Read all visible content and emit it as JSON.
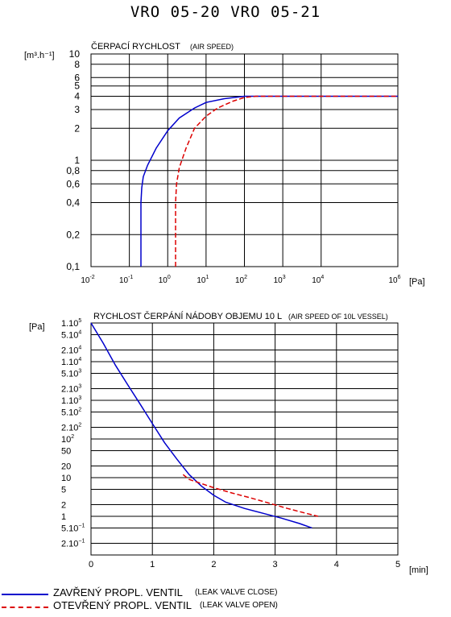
{
  "page": {
    "title": "VRO 05-20   VRO 05-21"
  },
  "legend": [
    {
      "label": "ZAVŘENÝ PROPL. VENTIL",
      "sublabel": "(LEAK VALVE CLOSE)",
      "color": "#0000cc",
      "dash": "solid"
    },
    {
      "label": "OTEVŘENÝ PROPL. VENTIL",
      "sublabel": "(LEAK VALVE OPEN)",
      "color": "#dd0000",
      "dash": "dashed"
    }
  ],
  "chart_data": [
    {
      "type": "line",
      "title": "ČERPACÍ RYCHLOST",
      "subtitle": "(AIR SPEED)",
      "ylabel": "[m³.h⁻¹]",
      "xlabel": "[Pa]",
      "xscale": "log",
      "yscale": "log",
      "xlim": [
        0.01,
        1000000
      ],
      "ylim": [
        0.1,
        10
      ],
      "grid": true,
      "x_ticks": [
        {
          "v": 0.01,
          "base": "10",
          "exp": "-2"
        },
        {
          "v": 0.1,
          "base": "10",
          "exp": "-1"
        },
        {
          "v": 1,
          "base": "10",
          "exp": "0"
        },
        {
          "v": 10,
          "base": "10",
          "exp": "1"
        },
        {
          "v": 100,
          "base": "10",
          "exp": "2"
        },
        {
          "v": 1000,
          "base": "10",
          "exp": "3"
        },
        {
          "v": 10000,
          "base": "10",
          "exp": "4"
        },
        {
          "v": 1000000,
          "base": "10",
          "exp": "6"
        }
      ],
      "y_ticks": [
        {
          "v": 10,
          "label": "10"
        },
        {
          "v": 8,
          "label": "8"
        },
        {
          "v": 6,
          "label": "6"
        },
        {
          "v": 5,
          "label": "5"
        },
        {
          "v": 4,
          "label": "4"
        },
        {
          "v": 3,
          "label": "3"
        },
        {
          "v": 2,
          "label": "2"
        },
        {
          "v": 1,
          "label": "1"
        },
        {
          "v": 0.8,
          "label": "0,8"
        },
        {
          "v": 0.6,
          "label": "0,6"
        },
        {
          "v": 0.4,
          "label": "0,4"
        },
        {
          "v": 0.2,
          "label": "0,2"
        },
        {
          "v": 0.1,
          "label": "0,1"
        }
      ],
      "series": [
        {
          "legend_index": 0,
          "color": "#0000cc",
          "dash": "solid",
          "x": [
            0.2,
            0.2,
            0.21,
            0.23,
            0.3,
            0.5,
            1,
            2,
            5,
            10,
            30,
            100,
            300,
            1000000
          ],
          "y": [
            0.1,
            0.4,
            0.55,
            0.7,
            0.9,
            1.3,
            1.9,
            2.5,
            3.1,
            3.5,
            3.8,
            4.0,
            4.0,
            4.0
          ]
        },
        {
          "legend_index": 1,
          "color": "#dd0000",
          "dash": "dashed",
          "x": [
            1.6,
            1.6,
            1.7,
            2,
            3,
            5,
            10,
            20,
            50,
            100,
            200,
            1000000
          ],
          "y": [
            0.1,
            0.4,
            0.6,
            0.85,
            1.3,
            2.0,
            2.6,
            3.1,
            3.6,
            3.9,
            4.0,
            4.0
          ]
        }
      ]
    },
    {
      "type": "line",
      "title": "RYCHLOST ČERPÁNÍ NÁDOBY OBJEMU 10 L",
      "subtitle": "(AIR SPEED OF 10L VESSEL)",
      "ylabel": "[Pa]",
      "xlabel": "[min]",
      "xscale": "linear",
      "yscale": "log",
      "xlim": [
        0,
        5
      ],
      "ylim": [
        0.1,
        100000
      ],
      "grid": true,
      "x_ticks": [
        {
          "v": 0,
          "label": "0"
        },
        {
          "v": 1,
          "label": "1"
        },
        {
          "v": 2,
          "label": "2"
        },
        {
          "v": 3,
          "label": "3"
        },
        {
          "v": 4,
          "label": "4"
        },
        {
          "v": 5,
          "label": "5"
        }
      ],
      "y_ticks": [
        {
          "v": 100000,
          "mant": "1.10",
          "exp": "5"
        },
        {
          "v": 50000,
          "mant": "5.10",
          "exp": "4"
        },
        {
          "v": 20000,
          "mant": "2.10",
          "exp": "4"
        },
        {
          "v": 10000,
          "mant": "1.10",
          "exp": "4"
        },
        {
          "v": 5000,
          "mant": "5.10",
          "exp": "3"
        },
        {
          "v": 2000,
          "mant": "2.10",
          "exp": "3"
        },
        {
          "v": 1000,
          "mant": "1.10",
          "exp": "3"
        },
        {
          "v": 500,
          "mant": "5.10",
          "exp": "2"
        },
        {
          "v": 200,
          "mant": "2.10",
          "exp": "2"
        },
        {
          "v": 100,
          "mant": "10",
          "exp": "2"
        },
        {
          "v": 50,
          "mant": "50",
          "exp": ""
        },
        {
          "v": 20,
          "mant": "20",
          "exp": ""
        },
        {
          "v": 10,
          "mant": "10",
          "exp": ""
        },
        {
          "v": 5,
          "mant": "5",
          "exp": ""
        },
        {
          "v": 2,
          "mant": "2",
          "exp": ""
        },
        {
          "v": 1,
          "mant": "1",
          "exp": ""
        },
        {
          "v": 0.5,
          "mant": "5.10",
          "exp": "−1"
        },
        {
          "v": 0.2,
          "mant": "2.10",
          "exp": "−1"
        }
      ],
      "series": [
        {
          "legend_index": 0,
          "color": "#0000cc",
          "dash": "solid",
          "x": [
            0,
            0.2,
            0.4,
            0.6,
            0.8,
            1.0,
            1.2,
            1.4,
            1.6,
            1.8,
            2.0,
            2.2,
            2.5,
            2.8,
            3.1,
            3.4,
            3.6
          ],
          "y": [
            100000,
            30000,
            8000,
            2500,
            800,
            250,
            80,
            30,
            12,
            6,
            3.5,
            2.3,
            1.6,
            1.2,
            0.9,
            0.65,
            0.5
          ]
        },
        {
          "legend_index": 1,
          "color": "#dd0000",
          "dash": "dashed",
          "x": [
            1.5,
            1.6,
            1.8,
            2.0,
            2.3,
            2.6,
            2.9,
            3.2,
            3.5,
            3.7
          ],
          "y": [
            12,
            9,
            7,
            5.5,
            4,
            3,
            2.2,
            1.6,
            1.2,
            1.0
          ]
        }
      ]
    }
  ]
}
